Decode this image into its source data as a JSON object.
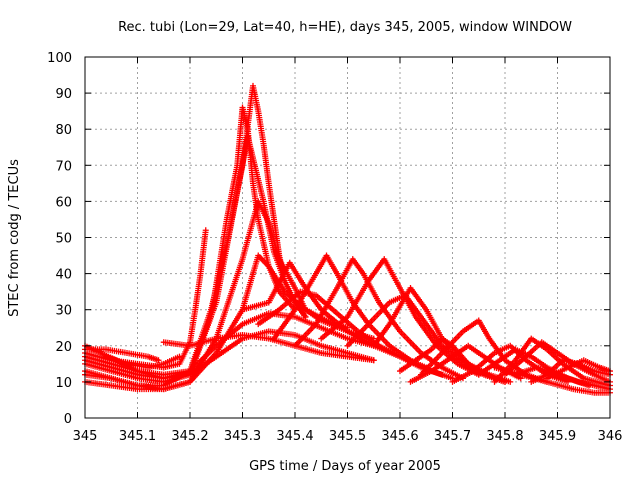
{
  "chart_data": {
    "type": "scatter",
    "title": "Rec. tubi (Lon=29, Lat=40, h=HE), days 345, 2005, window WINDOW",
    "xlabel": "GPS time / Days of year 2005",
    "ylabel": "STEC from codg / TECUs",
    "xlim": [
      345,
      346
    ],
    "ylim": [
      0,
      100
    ],
    "xticks": [
      "345",
      "345.1",
      "345.2",
      "345.3",
      "345.4",
      "345.5",
      "345.6",
      "345.7",
      "345.8",
      "345.9",
      "346"
    ],
    "yticks": [
      "0",
      "10",
      "20",
      "30",
      "40",
      "50",
      "60",
      "70",
      "80",
      "90",
      "100"
    ],
    "grid": true,
    "marker": "+",
    "color": "#ff0000",
    "series": [
      {
        "points": [
          [
            345.0,
            18
          ],
          [
            345.05,
            16
          ],
          [
            345.1,
            15
          ],
          [
            345.15,
            14
          ],
          [
            345.18,
            15
          ],
          [
            345.2,
            21
          ],
          [
            345.21,
            30
          ],
          [
            345.22,
            40
          ],
          [
            345.23,
            52
          ]
        ]
      },
      {
        "points": [
          [
            345.0,
            15
          ],
          [
            345.05,
            13
          ],
          [
            345.1,
            11
          ],
          [
            345.15,
            10
          ],
          [
            345.2,
            12
          ],
          [
            345.24,
            28
          ],
          [
            345.27,
            55
          ],
          [
            345.29,
            70
          ],
          [
            345.3,
            86
          ],
          [
            345.31,
            80
          ],
          [
            345.32,
            65
          ],
          [
            345.33,
            55
          ],
          [
            345.35,
            42
          ],
          [
            345.37,
            35
          ],
          [
            345.4,
            30
          ]
        ]
      },
      {
        "points": [
          [
            345.0,
            20
          ],
          [
            345.03,
            18
          ],
          [
            345.06,
            16
          ],
          [
            345.1,
            13
          ],
          [
            345.15,
            11
          ],
          [
            345.2,
            13
          ],
          [
            345.25,
            32
          ],
          [
            345.28,
            55
          ],
          [
            345.31,
            78
          ],
          [
            345.32,
            72
          ],
          [
            345.34,
            60
          ],
          [
            345.36,
            46
          ],
          [
            345.38,
            38
          ],
          [
            345.4,
            32
          ],
          [
            345.42,
            28
          ]
        ]
      },
      {
        "points": [
          [
            345.0,
            12
          ],
          [
            345.05,
            11
          ],
          [
            345.1,
            9
          ],
          [
            345.15,
            9
          ],
          [
            345.2,
            13
          ],
          [
            345.24,
            30
          ],
          [
            345.27,
            48
          ],
          [
            345.3,
            70
          ],
          [
            345.32,
            92
          ],
          [
            345.33,
            85
          ],
          [
            345.34,
            76
          ],
          [
            345.35,
            65
          ],
          [
            345.36,
            55
          ],
          [
            345.37,
            45
          ],
          [
            345.38,
            38
          ],
          [
            345.4,
            32
          ],
          [
            345.42,
            28
          ]
        ]
      },
      {
        "points": [
          [
            345.0,
            13
          ],
          [
            345.05,
            11
          ],
          [
            345.1,
            9
          ],
          [
            345.15,
            8
          ],
          [
            345.2,
            10
          ],
          [
            345.25,
            22
          ],
          [
            345.3,
            44
          ],
          [
            345.33,
            60
          ],
          [
            345.35,
            54
          ],
          [
            345.37,
            44
          ],
          [
            345.4,
            36
          ],
          [
            345.42,
            30
          ],
          [
            345.45,
            27
          ],
          [
            345.5,
            24
          ],
          [
            345.55,
            22
          ]
        ]
      },
      {
        "points": [
          [
            345.0,
            10
          ],
          [
            345.05,
            9
          ],
          [
            345.1,
            8
          ],
          [
            345.15,
            8
          ],
          [
            345.2,
            10
          ],
          [
            345.25,
            18
          ],
          [
            345.3,
            30
          ],
          [
            345.33,
            45
          ],
          [
            345.35,
            42
          ],
          [
            345.38,
            35
          ],
          [
            345.42,
            30
          ],
          [
            345.46,
            27
          ],
          [
            345.5,
            25
          ]
        ]
      },
      {
        "points": [
          [
            345.0,
            17
          ],
          [
            345.05,
            15
          ],
          [
            345.1,
            13
          ],
          [
            345.15,
            12
          ],
          [
            345.2,
            13
          ],
          [
            345.25,
            20
          ],
          [
            345.3,
            26
          ],
          [
            345.35,
            29
          ],
          [
            345.4,
            28
          ],
          [
            345.45,
            25
          ],
          [
            345.5,
            22
          ],
          [
            345.55,
            20
          ]
        ]
      },
      {
        "points": [
          [
            345.0,
            16
          ],
          [
            345.05,
            14
          ],
          [
            345.1,
            12
          ],
          [
            345.15,
            11
          ],
          [
            345.2,
            12
          ],
          [
            345.25,
            17
          ],
          [
            345.3,
            22
          ],
          [
            345.35,
            24
          ],
          [
            345.4,
            23
          ],
          [
            345.45,
            20
          ],
          [
            345.5,
            18
          ],
          [
            345.55,
            16
          ]
        ]
      },
      {
        "points": [
          [
            345.15,
            21
          ],
          [
            345.2,
            20
          ],
          [
            345.25,
            22
          ],
          [
            345.3,
            23
          ],
          [
            345.35,
            22
          ],
          [
            345.4,
            20
          ],
          [
            345.45,
            18
          ],
          [
            345.5,
            17
          ],
          [
            345.55,
            16
          ]
        ]
      },
      {
        "points": [
          [
            345.3,
            30
          ],
          [
            345.35,
            32
          ],
          [
            345.39,
            43
          ],
          [
            345.42,
            36
          ],
          [
            345.45,
            30
          ],
          [
            345.5,
            24
          ],
          [
            345.55,
            20
          ],
          [
            345.6,
            17
          ],
          [
            345.65,
            14
          ]
        ]
      },
      {
        "points": [
          [
            345.33,
            26
          ],
          [
            345.37,
            30
          ],
          [
            345.41,
            35
          ],
          [
            345.44,
            34
          ],
          [
            345.48,
            29
          ],
          [
            345.52,
            24
          ],
          [
            345.56,
            20
          ],
          [
            345.6,
            17
          ],
          [
            345.64,
            14
          ],
          [
            345.68,
            12
          ]
        ]
      },
      {
        "points": [
          [
            345.36,
            22
          ],
          [
            345.4,
            30
          ],
          [
            345.44,
            40
          ],
          [
            345.46,
            45
          ],
          [
            345.48,
            40
          ],
          [
            345.51,
            32
          ],
          [
            345.54,
            26
          ],
          [
            345.58,
            20
          ],
          [
            345.62,
            16
          ],
          [
            345.66,
            13
          ],
          [
            345.7,
            11
          ]
        ]
      },
      {
        "points": [
          [
            345.4,
            20
          ],
          [
            345.44,
            26
          ],
          [
            345.48,
            36
          ],
          [
            345.51,
            44
          ],
          [
            345.53,
            40
          ],
          [
            345.56,
            32
          ],
          [
            345.6,
            24
          ],
          [
            345.64,
            18
          ],
          [
            345.68,
            14
          ],
          [
            345.72,
            11
          ]
        ]
      },
      {
        "points": [
          [
            345.45,
            22
          ],
          [
            345.5,
            28
          ],
          [
            345.54,
            38
          ],
          [
            345.57,
            44
          ],
          [
            345.6,
            36
          ],
          [
            345.63,
            28
          ],
          [
            345.67,
            20
          ],
          [
            345.71,
            15
          ],
          [
            345.75,
            12
          ]
        ]
      },
      {
        "points": [
          [
            345.5,
            20
          ],
          [
            345.54,
            26
          ],
          [
            345.58,
            32
          ],
          [
            345.61,
            34
          ],
          [
            345.64,
            28
          ],
          [
            345.68,
            20
          ],
          [
            345.72,
            15
          ],
          [
            345.76,
            12
          ],
          [
            345.8,
            10
          ]
        ]
      },
      {
        "points": [
          [
            345.55,
            20
          ],
          [
            345.58,
            26
          ],
          [
            345.62,
            36
          ],
          [
            345.65,
            30
          ],
          [
            345.68,
            22
          ],
          [
            345.72,
            16
          ],
          [
            345.76,
            12
          ],
          [
            345.8,
            10
          ]
        ]
      },
      {
        "points": [
          [
            345.6,
            13
          ],
          [
            345.63,
            16
          ],
          [
            345.66,
            19
          ],
          [
            345.68,
            22
          ],
          [
            345.7,
            20
          ],
          [
            345.73,
            15
          ],
          [
            345.77,
            12
          ],
          [
            345.81,
            10
          ]
        ]
      },
      {
        "points": [
          [
            345.62,
            10
          ],
          [
            345.66,
            13
          ],
          [
            345.7,
            17
          ],
          [
            345.73,
            20
          ],
          [
            345.76,
            17
          ],
          [
            345.79,
            14
          ],
          [
            345.83,
            11
          ]
        ]
      },
      {
        "points": [
          [
            345.64,
            12
          ],
          [
            345.68,
            18
          ],
          [
            345.72,
            24
          ],
          [
            345.75,
            27
          ],
          [
            345.77,
            22
          ],
          [
            345.8,
            16
          ],
          [
            345.84,
            12
          ],
          [
            345.88,
            10
          ]
        ]
      },
      {
        "points": [
          [
            345.7,
            10
          ],
          [
            345.74,
            13
          ],
          [
            345.78,
            18
          ],
          [
            345.81,
            20
          ],
          [
            345.84,
            16
          ],
          [
            345.88,
            12
          ],
          [
            345.92,
            10
          ]
        ]
      },
      {
        "points": [
          [
            345.75,
            12
          ],
          [
            345.79,
            16
          ],
          [
            345.82,
            19
          ],
          [
            345.85,
            17
          ],
          [
            345.88,
            14
          ],
          [
            345.92,
            11
          ],
          [
            345.96,
            9
          ]
        ]
      },
      {
        "points": [
          [
            345.78,
            10
          ],
          [
            345.82,
            16
          ],
          [
            345.85,
            22
          ],
          [
            345.88,
            19
          ],
          [
            345.91,
            15
          ],
          [
            345.95,
            11
          ],
          [
            346.0,
            9
          ]
        ]
      },
      {
        "points": [
          [
            345.8,
            12
          ],
          [
            345.84,
            17
          ],
          [
            345.87,
            21
          ],
          [
            345.9,
            18
          ],
          [
            345.93,
            15
          ],
          [
            345.97,
            12
          ],
          [
            346.0,
            10
          ]
        ]
      },
      {
        "points": [
          [
            345.85,
            10
          ],
          [
            345.88,
            12
          ],
          [
            345.91,
            16
          ],
          [
            345.94,
            15
          ],
          [
            345.97,
            13
          ],
          [
            346.0,
            12
          ]
        ]
      },
      {
        "points": [
          [
            345.82,
            12
          ],
          [
            345.86,
            14
          ],
          [
            345.9,
            12
          ],
          [
            345.94,
            10
          ],
          [
            345.97,
            9
          ],
          [
            346.0,
            8
          ]
        ]
      },
      {
        "points": [
          [
            345.78,
            14
          ],
          [
            345.83,
            12
          ],
          [
            345.88,
            10
          ],
          [
            345.93,
            8
          ],
          [
            345.97,
            7
          ],
          [
            346.0,
            7
          ]
        ]
      },
      {
        "points": [
          [
            345.88,
            11
          ],
          [
            345.92,
            14
          ],
          [
            345.95,
            16
          ],
          [
            345.98,
            14
          ],
          [
            346.0,
            13
          ]
        ]
      },
      {
        "points": [
          [
            345.0,
            19
          ],
          [
            345.04,
            19
          ],
          [
            345.08,
            18
          ],
          [
            345.12,
            17
          ],
          [
            345.14,
            16
          ]
        ]
      },
      {
        "points": [
          [
            345.04,
            17
          ],
          [
            345.08,
            15
          ],
          [
            345.12,
            14
          ],
          [
            345.15,
            15
          ],
          [
            345.18,
            17
          ]
        ]
      }
    ]
  }
}
